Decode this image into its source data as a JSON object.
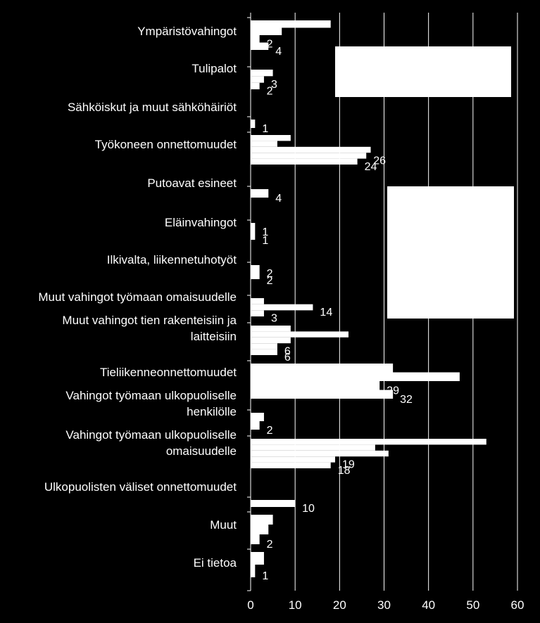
{
  "chart_data": {
    "type": "bar",
    "orientation": "horizontal",
    "xlim": [
      0,
      60
    ],
    "xticks": [
      0,
      10,
      20,
      30,
      40,
      50,
      60
    ],
    "grid": true,
    "legend": "top-right (white boxes, entries not legible)",
    "colors": {
      "background": "#000000",
      "bars": "#ffffff",
      "grid": "#ffffff",
      "text": "#ffffff"
    },
    "categories": [
      {
        "label": "Ympäristövahingot",
        "values": [
          18,
          7,
          2,
          4
        ],
        "labels": [
          "",
          "",
          "2",
          "4"
        ]
      },
      {
        "label": "Tulipalot",
        "values": [
          5,
          3,
          2
        ],
        "labels": [
          "",
          "3",
          "2"
        ]
      },
      {
        "label": "Sähköiskut ja muut sähköhäiriöt",
        "values": [
          1
        ],
        "labels": [
          "1"
        ]
      },
      {
        "label": "Työkoneen onnettomuudet",
        "values": [
          9,
          6,
          27,
          26,
          24
        ],
        "labels": [
          "",
          "",
          "",
          "26",
          "24"
        ]
      },
      {
        "label": "Putoavat esineet",
        "values": [
          4
        ],
        "labels": [
          "4"
        ]
      },
      {
        "label": "Eläinvahingot",
        "values": [
          1,
          1
        ],
        "labels": [
          "1",
          "1"
        ]
      },
      {
        "label": "Ilkivalta, liikennetuhotyöt",
        "values": [
          2,
          2
        ],
        "labels": [
          "2",
          "2"
        ]
      },
      {
        "label": "Muut vahingot työmaan omaisuudelle",
        "values": [
          3,
          14,
          3
        ],
        "labels": [
          "",
          "14",
          "3"
        ]
      },
      {
        "label": "Muut vahingot tien rakenteisiin ja laitteisiin",
        "values": [
          9,
          22,
          9,
          6,
          6
        ],
        "labels": [
          "",
          "",
          "",
          "6",
          "6"
        ]
      },
      {
        "label": "Tieliikenneonnettomuudet",
        "values": [
          32,
          47,
          29,
          32
        ],
        "labels": [
          "",
          "",
          "29",
          "32"
        ]
      },
      {
        "label": "Vahingot työmaan ulkopuoliselle henkilölle",
        "values": [
          3,
          2
        ],
        "labels": [
          "",
          "2"
        ]
      },
      {
        "label": "Vahingot työmaan ulkopuoliselle omaisuudelle",
        "values": [
          53,
          28,
          31,
          19,
          18
        ],
        "labels": [
          "",
          "",
          "",
          "19",
          "18"
        ]
      },
      {
        "label": "Ulkopuolisten väliset onnettomuudet",
        "values": [
          10
        ],
        "labels": [
          "10"
        ]
      },
      {
        "label": "Muut",
        "values": [
          5,
          4,
          2
        ],
        "labels": [
          "",
          "",
          "2"
        ]
      },
      {
        "label": "Ei tietoa",
        "values": [
          3,
          1
        ],
        "labels": [
          "",
          "1"
        ]
      }
    ]
  }
}
